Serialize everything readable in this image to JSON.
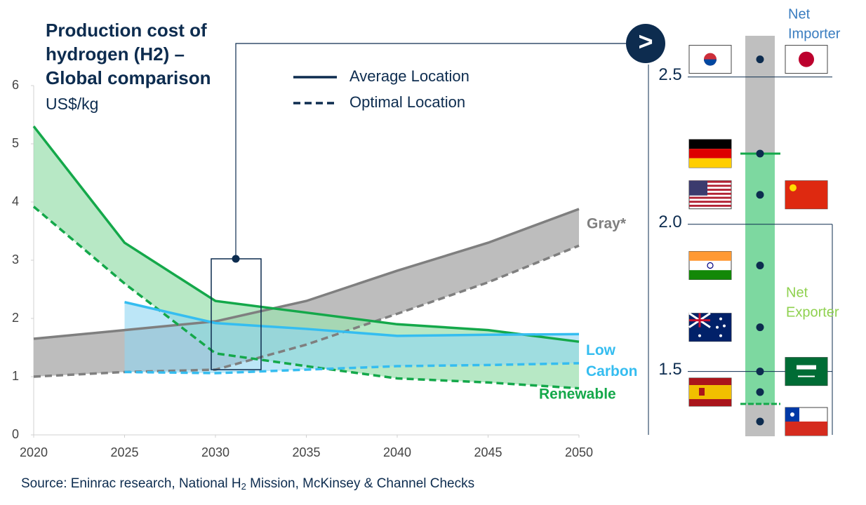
{
  "chart_data": [
    {
      "type": "band-line",
      "title": [
        "Production cost of",
        "hydrogen (H2) –",
        "Global comparison"
      ],
      "subtitle": "US$/kg",
      "x": [
        2020,
        2025,
        2030,
        2035,
        2040,
        2045,
        2050
      ],
      "xlim": [
        2020,
        2050
      ],
      "xticks": [
        2020,
        2025,
        2030,
        2035,
        2040,
        2045,
        2050
      ],
      "ylim": [
        0,
        6
      ],
      "yticks": [
        0,
        1,
        2,
        3,
        4,
        5,
        6
      ],
      "legend": {
        "average": "Average Location",
        "optimal": "Optimal Location"
      },
      "series": [
        {
          "name": "Gray*",
          "color": "#7f7f7f",
          "fill": "#bdbdbd",
          "average": [
            1.65,
            1.8,
            1.95,
            2.3,
            2.82,
            3.3,
            3.88
          ],
          "optimal": [
            1.0,
            1.08,
            1.12,
            1.55,
            2.08,
            2.62,
            3.25
          ]
        },
        {
          "name": "Renewable",
          "color": "#14a84a",
          "fill": "#9fe0b2",
          "average": [
            5.3,
            3.3,
            2.3,
            2.1,
            1.9,
            1.8,
            1.6
          ],
          "optimal": [
            3.92,
            2.6,
            1.4,
            1.18,
            0.97,
            0.9,
            0.8
          ]
        },
        {
          "name": "Low Carbon",
          "color": "#35bdf0",
          "fill": "#8fd6f2",
          "average": [
            null,
            2.28,
            1.92,
            1.82,
            1.7,
            1.72,
            1.73
          ],
          "optimal": [
            null,
            1.08,
            1.06,
            1.12,
            1.18,
            1.2,
            1.23
          ]
        }
      ],
      "button": ">",
      "source": [
        "Source: Eninrac research, National H",
        "2",
        " Mission, McKinsey & Channel Checks"
      ]
    },
    {
      "type": "dot-strip",
      "ylim": [
        1.28,
        2.64
      ],
      "yticks": [
        {
          "value": 2.5,
          "label": "2.5"
        },
        {
          "value": 2,
          "label": "2.0"
        },
        {
          "value": 1.5,
          "label": "1.5"
        }
      ],
      "values": [
        2.56,
        2.24,
        2.1,
        1.86,
        1.65,
        1.5,
        1.43,
        1.33
      ],
      "band": [
        1.39,
        2.24
      ],
      "band_color": "#7dd8a0",
      "importer_label": [
        "Net",
        "Importer"
      ],
      "exporter_label": [
        "Net",
        "Exporter"
      ]
    }
  ]
}
